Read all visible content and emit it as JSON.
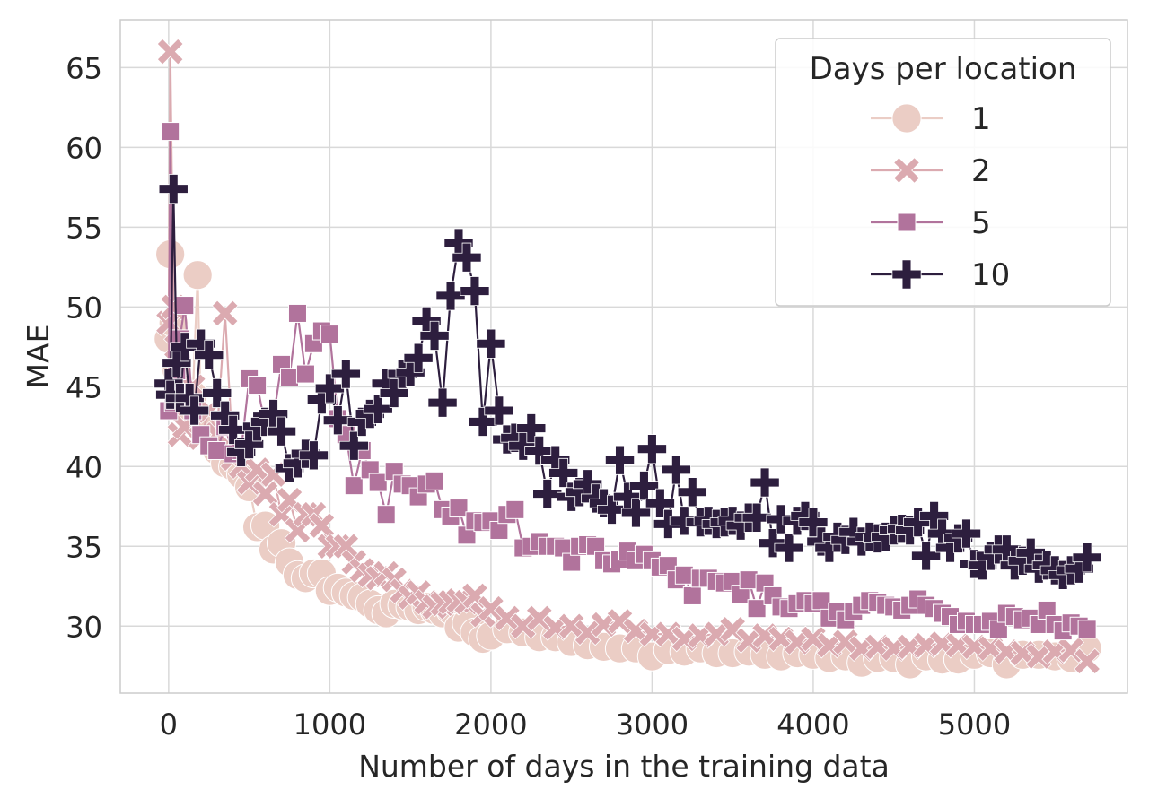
{
  "chart_data": {
    "type": "line",
    "title": "",
    "xlabel": "Number of days in the training data",
    "ylabel": "MAE",
    "xlim": [
      -300,
      5950
    ],
    "ylim": [
      25.8,
      68.0
    ],
    "xticks": [
      0,
      1000,
      2000,
      3000,
      4000,
      5000
    ],
    "xtick_labels": [
      "0",
      "1000",
      "2000",
      "3000",
      "4000",
      "5000"
    ],
    "yticks": [
      30,
      35,
      40,
      45,
      50,
      55,
      60,
      65
    ],
    "ytick_labels": [
      "30",
      "35",
      "40",
      "45",
      "50",
      "55",
      "60",
      "65"
    ],
    "grid": true,
    "legend": {
      "title": "Days per location",
      "position": "top-right",
      "entries": [
        "1",
        "2",
        "5",
        "10"
      ]
    },
    "series": [
      {
        "name": "1",
        "color": "#ebcdc5",
        "marker": "circle",
        "x": [
          0,
          10,
          30,
          50,
          70,
          100,
          150,
          180,
          200,
          250,
          300,
          350,
          400,
          450,
          500,
          550,
          600,
          650,
          700,
          750,
          800,
          850,
          900,
          950,
          1000,
          1050,
          1100,
          1150,
          1200,
          1250,
          1300,
          1350,
          1400,
          1450,
          1500,
          1550,
          1600,
          1650,
          1700,
          1750,
          1800,
          1850,
          1900,
          1950,
          2000,
          2100,
          2200,
          2300,
          2400,
          2500,
          2600,
          2700,
          2800,
          2900,
          3000,
          3100,
          3200,
          3300,
          3400,
          3500,
          3600,
          3700,
          3800,
          3900,
          4000,
          4100,
          4200,
          4300,
          4400,
          4500,
          4600,
          4700,
          4800,
          4900,
          5000,
          5100,
          5200,
          5300,
          5400,
          5500,
          5600,
          5700
        ],
        "y": [
          48.0,
          53.3,
          49.0,
          46.0,
          44.8,
          43.5,
          44.5,
          52.0,
          43.0,
          42.5,
          41.0,
          40.2,
          40.0,
          39.5,
          38.7,
          36.2,
          36.3,
          34.8,
          35.2,
          34.0,
          33.2,
          33.0,
          33.3,
          33.3,
          32.2,
          32.4,
          32.1,
          31.9,
          31.8,
          31.4,
          31.0,
          30.8,
          31.4,
          31.3,
          31.2,
          31.0,
          31.2,
          31.0,
          30.8,
          31.0,
          29.9,
          30.2,
          29.6,
          29.2,
          29.4,
          29.8,
          29.6,
          29.3,
          29.3,
          29.0,
          28.8,
          28.7,
          28.6,
          28.6,
          28.1,
          28.5,
          28.4,
          28.6,
          28.3,
          28.3,
          28.4,
          28.2,
          28.1,
          28.3,
          28.2,
          28.0,
          28.1,
          27.7,
          28.0,
          28.0,
          27.6,
          28.1,
          27.9,
          27.9,
          28.2,
          28.3,
          27.6,
          28.2,
          28.2,
          28.1,
          28.0,
          28.6
        ]
      },
      {
        "name": "2",
        "color": "#dbaab0",
        "marker": "x",
        "x": [
          0,
          10,
          30,
          50,
          70,
          100,
          150,
          200,
          250,
          300,
          350,
          400,
          450,
          500,
          550,
          600,
          650,
          700,
          750,
          800,
          850,
          900,
          950,
          1000,
          1050,
          1100,
          1150,
          1200,
          1250,
          1300,
          1350,
          1400,
          1450,
          1500,
          1550,
          1600,
          1650,
          1700,
          1750,
          1800,
          1850,
          1900,
          1950,
          2000,
          2100,
          2200,
          2300,
          2400,
          2500,
          2600,
          2700,
          2800,
          2900,
          3000,
          3100,
          3200,
          3300,
          3400,
          3500,
          3600,
          3700,
          3800,
          3900,
          4000,
          4100,
          4200,
          4300,
          4400,
          4500,
          4600,
          4700,
          4800,
          4900,
          5000,
          5100,
          5200,
          5300,
          5400,
          5500,
          5600,
          5700
        ],
        "y": [
          49.0,
          66.0,
          50.0,
          47.5,
          42.0,
          42.5,
          45.0,
          41.8,
          43.5,
          42.0,
          49.6,
          40.5,
          40.0,
          39.0,
          39.8,
          38.3,
          39.5,
          37.0,
          37.9,
          36.0,
          37.0,
          37.0,
          36.3,
          35.0,
          35.0,
          35.0,
          34.0,
          33.5,
          33.2,
          33.0,
          33.3,
          32.9,
          32.2,
          31.8,
          32.1,
          31.5,
          31.2,
          31.4,
          31.5,
          31.6,
          31.5,
          31.9,
          30.7,
          31.1,
          30.5,
          30.0,
          30.5,
          29.9,
          30.0,
          29.6,
          30.1,
          30.3,
          29.7,
          29.5,
          29.5,
          29.2,
          29.4,
          29.5,
          29.8,
          29.1,
          29.4,
          29.2,
          29.0,
          29.2,
          28.8,
          29.0,
          28.6,
          28.7,
          28.6,
          28.7,
          28.8,
          28.9,
          28.8,
          28.7,
          28.6,
          28.4,
          28.3,
          28.1,
          28.4,
          28.5,
          27.8
        ]
      },
      {
        "name": "5",
        "color": "#b1739c",
        "marker": "square",
        "x": [
          0,
          10,
          30,
          50,
          70,
          100,
          150,
          200,
          250,
          300,
          350,
          400,
          450,
          500,
          550,
          600,
          650,
          700,
          750,
          800,
          850,
          900,
          950,
          1000,
          1050,
          1100,
          1150,
          1200,
          1250,
          1300,
          1350,
          1400,
          1450,
          1500,
          1550,
          1600,
          1650,
          1700,
          1750,
          1800,
          1850,
          1900,
          1950,
          2000,
          2050,
          2100,
          2150,
          2200,
          2250,
          2300,
          2350,
          2400,
          2450,
          2500,
          2550,
          2600,
          2650,
          2700,
          2750,
          2800,
          2850,
          2900,
          2950,
          3000,
          3050,
          3100,
          3150,
          3200,
          3250,
          3300,
          3350,
          3400,
          3450,
          3500,
          3550,
          3600,
          3650,
          3700,
          3750,
          3800,
          3850,
          3900,
          3950,
          4000,
          4050,
          4100,
          4150,
          4200,
          4250,
          4300,
          4350,
          4400,
          4450,
          4500,
          4550,
          4600,
          4650,
          4700,
          4750,
          4800,
          4850,
          4900,
          4950,
          5000,
          5050,
          5100,
          5150,
          5200,
          5250,
          5300,
          5350,
          5400,
          5450,
          5500,
          5550,
          5600,
          5650,
          5700
        ],
        "y": [
          43.5,
          61.0,
          44.0,
          46.0,
          48.0,
          50.1,
          43.5,
          42.0,
          41.3,
          41.0,
          42.5,
          40.8,
          41.0,
          45.5,
          45.1,
          42.5,
          43.0,
          46.4,
          45.6,
          49.6,
          45.8,
          47.7,
          48.5,
          48.3,
          43.0,
          42.0,
          38.8,
          41.0,
          39.8,
          39.0,
          37.0,
          39.7,
          38.9,
          38.8,
          38.1,
          38.9,
          39.1,
          37.3,
          36.9,
          37.4,
          35.7,
          36.6,
          36.5,
          36.6,
          36.0,
          37.0,
          37.3,
          34.9,
          35.0,
          35.3,
          35.0,
          35.0,
          34.9,
          34.0,
          35.0,
          35.1,
          35.0,
          34.1,
          33.9,
          34.2,
          34.7,
          34.1,
          34.5,
          34.1,
          33.7,
          33.8,
          32.9,
          33.2,
          31.9,
          33.0,
          33.0,
          32.8,
          32.7,
          32.8,
          32.0,
          32.9,
          31.1,
          32.7,
          31.9,
          31.2,
          31.1,
          31.4,
          31.6,
          31.4,
          31.6,
          30.5,
          30.9,
          30.4,
          30.9,
          31.3,
          31.6,
          31.5,
          31.3,
          31.2,
          31.0,
          31.3,
          31.7,
          31.3,
          31.1,
          30.8,
          30.6,
          30.1,
          30.3,
          30.1,
          30.1,
          30.3,
          29.8,
          30.8,
          30.6,
          30.4,
          30.5,
          30.1,
          31.0,
          30.1,
          29.7,
          30.2,
          30.0,
          29.8
        ]
      },
      {
        "name": "10",
        "color": "#2d1e3e",
        "marker": "plus",
        "x": [
          0,
          10,
          30,
          50,
          70,
          100,
          130,
          160,
          200,
          250,
          300,
          350,
          400,
          450,
          500,
          550,
          600,
          650,
          700,
          750,
          800,
          850,
          900,
          950,
          1000,
          1050,
          1100,
          1150,
          1200,
          1250,
          1300,
          1350,
          1400,
          1450,
          1500,
          1550,
          1600,
          1650,
          1700,
          1750,
          1800,
          1850,
          1900,
          1950,
          2000,
          2050,
          2100,
          2150,
          2200,
          2250,
          2300,
          2350,
          2400,
          2450,
          2500,
          2550,
          2600,
          2650,
          2700,
          2750,
          2800,
          2850,
          2900,
          2950,
          3000,
          3050,
          3100,
          3150,
          3200,
          3250,
          3300,
          3350,
          3400,
          3450,
          3500,
          3550,
          3600,
          3650,
          3700,
          3750,
          3800,
          3850,
          3900,
          3950,
          4000,
          4050,
          4100,
          4150,
          4200,
          4250,
          4300,
          4350,
          4400,
          4450,
          4500,
          4550,
          4600,
          4650,
          4700,
          4750,
          4800,
          4850,
          4900,
          4950,
          5000,
          5050,
          5100,
          5150,
          5200,
          5250,
          5300,
          5350,
          5400,
          5450,
          5500,
          5550,
          5600,
          5650,
          5700
        ],
        "y": [
          45.2,
          44.5,
          57.4,
          46.5,
          44.3,
          47.5,
          44.3,
          43.5,
          47.7,
          47.0,
          44.6,
          43.2,
          42.3,
          40.9,
          41.4,
          42.5,
          42.8,
          43.3,
          42.2,
          39.9,
          40.2,
          40.8,
          40.7,
          44.2,
          44.9,
          42.9,
          45.8,
          41.3,
          42.8,
          43.3,
          43.6,
          45.2,
          44.6,
          45.8,
          45.9,
          46.8,
          49.1,
          48.2,
          44.0,
          50.7,
          54.0,
          53.1,
          51.0,
          42.8,
          47.7,
          43.5,
          41.7,
          41.8,
          41.3,
          42.4,
          41.0,
          38.3,
          40.4,
          39.6,
          38.1,
          38.4,
          38.9,
          38.0,
          37.7,
          37.3,
          40.4,
          38.1,
          37.1,
          38.8,
          41.1,
          37.7,
          36.4,
          39.8,
          36.6,
          38.4,
          36.5,
          36.6,
          36.4,
          36.5,
          36.6,
          36.3,
          36.8,
          36.8,
          39.0,
          35.2,
          36.7,
          34.9,
          36.6,
          36.9,
          36.5,
          35.3,
          34.9,
          35.6,
          35.4,
          35.9,
          35.3,
          35.6,
          35.5,
          35.6,
          36.0,
          36.1,
          36.0,
          36.5,
          34.4,
          36.9,
          35.8,
          34.9,
          35.5,
          35.8,
          33.9,
          33.8,
          34.4,
          34.8,
          34.8,
          33.8,
          34.1,
          34.6,
          33.6,
          33.8,
          33.5,
          33.2,
          33.5,
          33.6,
          34.3
        ]
      }
    ]
  }
}
